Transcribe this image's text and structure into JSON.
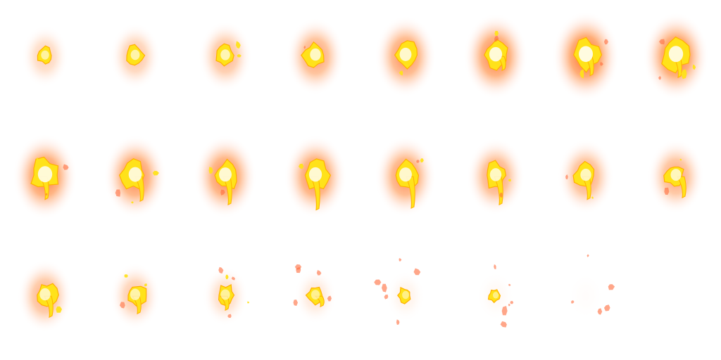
{
  "sprite_sheet": {
    "columns": 8,
    "rows": 3,
    "frame_count": 23,
    "colors": {
      "background": "#ffffff",
      "glow_outer": "#ffd9c8",
      "glow_mid": "#ff8a3d",
      "glow_inner": "#ff5a1f",
      "flame": "#ffe21a",
      "flame_edge": "#ffb000",
      "core": "#fffbe0",
      "spark": "#ff6a3a"
    },
    "frames": [
      {
        "id": 1,
        "intensity": 0.35,
        "size": 0.3,
        "spread": 0.0,
        "tail": 0.0,
        "sparks": 0
      },
      {
        "id": 2,
        "intensity": 0.45,
        "size": 0.38,
        "spread": 0.05,
        "tail": 0.0,
        "sparks": 0
      },
      {
        "id": 3,
        "intensity": 0.55,
        "size": 0.42,
        "spread": 0.15,
        "tail": 0.0,
        "sparks": 2
      },
      {
        "id": 4,
        "intensity": 0.7,
        "size": 0.52,
        "spread": 0.1,
        "tail": 0.0,
        "sparks": 1
      },
      {
        "id": 5,
        "intensity": 0.8,
        "size": 0.6,
        "spread": 0.15,
        "tail": 0.0,
        "sparks": 1
      },
      {
        "id": 6,
        "intensity": 0.9,
        "size": 0.68,
        "spread": 0.3,
        "tail": 0.2,
        "sparks": 2
      },
      {
        "id": 7,
        "intensity": 1.0,
        "size": 0.78,
        "spread": 0.5,
        "tail": 0.35,
        "sparks": 3
      },
      {
        "id": 8,
        "intensity": 0.95,
        "size": 0.8,
        "spread": 0.6,
        "tail": 0.4,
        "sparks": 4
      },
      {
        "id": 9,
        "intensity": 0.9,
        "size": 0.8,
        "spread": 0.7,
        "tail": 0.45,
        "sparks": 3
      },
      {
        "id": 10,
        "intensity": 0.85,
        "size": 0.7,
        "spread": 0.5,
        "tail": 0.5,
        "sparks": 3
      },
      {
        "id": 11,
        "intensity": 0.85,
        "size": 0.66,
        "spread": 0.3,
        "tail": 0.6,
        "sparks": 2
      },
      {
        "id": 12,
        "intensity": 0.85,
        "size": 0.68,
        "spread": 0.3,
        "tail": 0.75,
        "sparks": 1
      },
      {
        "id": 13,
        "intensity": 0.8,
        "size": 0.66,
        "spread": 0.35,
        "tail": 0.7,
        "sparks": 2
      },
      {
        "id": 14,
        "intensity": 0.7,
        "size": 0.58,
        "spread": 0.35,
        "tail": 0.6,
        "sparks": 2
      },
      {
        "id": 15,
        "intensity": 0.65,
        "size": 0.52,
        "spread": 0.3,
        "tail": 0.45,
        "sparks": 2
      },
      {
        "id": 16,
        "intensity": 0.65,
        "size": 0.5,
        "spread": 0.3,
        "tail": 0.4,
        "sparks": 2
      },
      {
        "id": 17,
        "intensity": 0.6,
        "size": 0.52,
        "spread": 0.25,
        "tail": 0.4,
        "sparks": 1
      },
      {
        "id": 18,
        "intensity": 0.45,
        "size": 0.46,
        "spread": 0.4,
        "tail": 0.3,
        "sparks": 3
      },
      {
        "id": 19,
        "intensity": 0.3,
        "size": 0.4,
        "spread": 0.6,
        "tail": 0.2,
        "sparks": 5
      },
      {
        "id": 20,
        "intensity": 0.2,
        "size": 0.34,
        "spread": 0.7,
        "tail": 0.1,
        "sparks": 5
      },
      {
        "id": 21,
        "intensity": 0.1,
        "size": 0.22,
        "spread": 0.8,
        "tail": 0.0,
        "sparks": 6
      },
      {
        "id": 22,
        "intensity": 0.05,
        "size": 0.12,
        "spread": 0.8,
        "tail": 0.0,
        "sparks": 6
      },
      {
        "id": 23,
        "intensity": 0.02,
        "size": 0.06,
        "spread": 0.9,
        "tail": 0.0,
        "sparks": 5
      }
    ]
  }
}
